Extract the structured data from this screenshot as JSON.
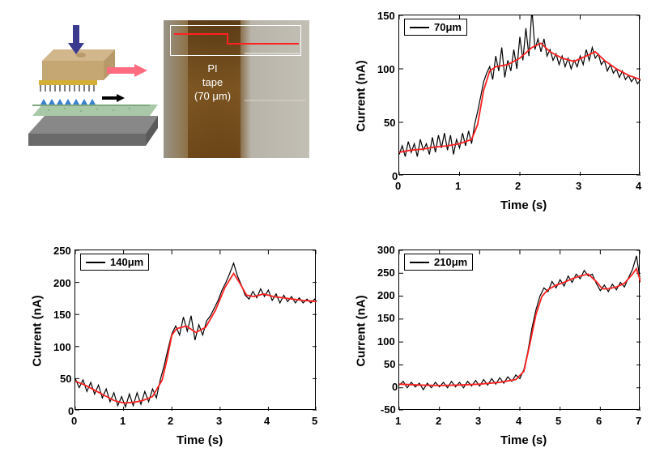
{
  "figure": {
    "background_color": "#ffffff",
    "panels": {
      "top_left": {
        "schematic": {
          "arrows": {
            "down": "#3a3a8f",
            "right": "#ff5b6f",
            "small_right": "#000000"
          },
          "block_top_color": "#d2b78c",
          "block_side_color": "#b89a6a",
          "substrate_top_color": "#767676",
          "substrate_green_color": "#a8c8a8"
        },
        "photo": {
          "label_l1": "PI",
          "label_l2": "tape",
          "label_l3": "(70 μm)",
          "tape_color": "#6b4417",
          "bg_gradient": [
            "#9a9488",
            "#c2bfb5"
          ],
          "step_line_color": "#ff2020",
          "step_border_color": "#ffffff"
        }
      },
      "chart_70": {
        "type": "line",
        "legend_label": "70μm",
        "xlabel": "Time (s)",
        "ylabel": "Current (nA)",
        "xlim": [
          0,
          4
        ],
        "ylim": [
          0,
          150
        ],
        "xticks": [
          0,
          1,
          2,
          3,
          4
        ],
        "yticks": [
          0,
          50,
          100,
          150
        ],
        "raw_color": "#000000",
        "smooth_color": "#ff2020",
        "label_fontsize": 15,
        "tick_fontsize": 13,
        "line_width_raw": 1.2,
        "line_width_smooth": 1.8,
        "raw_data": [
          [
            0.0,
            20
          ],
          [
            0.05,
            28
          ],
          [
            0.1,
            18
          ],
          [
            0.15,
            32
          ],
          [
            0.2,
            22
          ],
          [
            0.25,
            30
          ],
          [
            0.3,
            18
          ],
          [
            0.35,
            34
          ],
          [
            0.4,
            24
          ],
          [
            0.45,
            30
          ],
          [
            0.5,
            20
          ],
          [
            0.55,
            36
          ],
          [
            0.6,
            22
          ],
          [
            0.65,
            38
          ],
          [
            0.7,
            26
          ],
          [
            0.75,
            40
          ],
          [
            0.8,
            24
          ],
          [
            0.85,
            38
          ],
          [
            0.9,
            20
          ],
          [
            0.95,
            34
          ],
          [
            1.0,
            26
          ],
          [
            1.05,
            40
          ],
          [
            1.1,
            28
          ],
          [
            1.15,
            42
          ],
          [
            1.2,
            30
          ],
          [
            1.25,
            48
          ],
          [
            1.3,
            60
          ],
          [
            1.35,
            74
          ],
          [
            1.4,
            88
          ],
          [
            1.45,
            96
          ],
          [
            1.5,
            102
          ],
          [
            1.55,
            90
          ],
          [
            1.6,
            112
          ],
          [
            1.65,
            98
          ],
          [
            1.7,
            120
          ],
          [
            1.75,
            92
          ],
          [
            1.8,
            108
          ],
          [
            1.85,
            98
          ],
          [
            1.9,
            118
          ],
          [
            1.95,
            100
          ],
          [
            2.0,
            130
          ],
          [
            2.05,
            108
          ],
          [
            2.1,
            138
          ],
          [
            2.15,
            112
          ],
          [
            2.2,
            156
          ],
          [
            2.25,
            118
          ],
          [
            2.3,
            128
          ],
          [
            2.35,
            116
          ],
          [
            2.4,
            128
          ],
          [
            2.45,
            112
          ],
          [
            2.5,
            118
          ],
          [
            2.55,
            108
          ],
          [
            2.6,
            114
          ],
          [
            2.65,
            104
          ],
          [
            2.7,
            112
          ],
          [
            2.75,
            102
          ],
          [
            2.8,
            110
          ],
          [
            2.85,
            100
          ],
          [
            2.9,
            108
          ],
          [
            2.95,
            102
          ],
          [
            3.0,
            112
          ],
          [
            3.05,
            104
          ],
          [
            3.1,
            118
          ],
          [
            3.15,
            108
          ],
          [
            3.2,
            120
          ],
          [
            3.25,
            110
          ],
          [
            3.3,
            114
          ],
          [
            3.35,
            104
          ],
          [
            3.4,
            108
          ],
          [
            3.45,
            98
          ],
          [
            3.5,
            104
          ],
          [
            3.55,
            96
          ],
          [
            3.6,
            100
          ],
          [
            3.65,
            92
          ],
          [
            3.7,
            98
          ],
          [
            3.75,
            90
          ],
          [
            3.8,
            94
          ],
          [
            3.85,
            88
          ],
          [
            3.9,
            92
          ],
          [
            3.95,
            86
          ],
          [
            4.0,
            90
          ]
        ],
        "smooth_data": [
          [
            0.0,
            22
          ],
          [
            0.2,
            24
          ],
          [
            0.4,
            25
          ],
          [
            0.6,
            27
          ],
          [
            0.8,
            28
          ],
          [
            1.0,
            30
          ],
          [
            1.2,
            34
          ],
          [
            1.3,
            48
          ],
          [
            1.4,
            80
          ],
          [
            1.5,
            98
          ],
          [
            1.6,
            102
          ],
          [
            1.8,
            104
          ],
          [
            2.0,
            110
          ],
          [
            2.2,
            120
          ],
          [
            2.35,
            124
          ],
          [
            2.5,
            116
          ],
          [
            2.7,
            110
          ],
          [
            2.9,
            107
          ],
          [
            3.1,
            112
          ],
          [
            3.25,
            116
          ],
          [
            3.4,
            108
          ],
          [
            3.6,
            100
          ],
          [
            3.8,
            94
          ],
          [
            4.0,
            90
          ]
        ]
      },
      "chart_140": {
        "type": "line",
        "legend_label": "140μm",
        "xlabel": "Time (s)",
        "ylabel": "Current (nA)",
        "xlim": [
          0,
          5
        ],
        "ylim": [
          0,
          250
        ],
        "xticks": [
          0,
          1,
          2,
          3,
          4,
          5
        ],
        "yticks": [
          0,
          50,
          100,
          150,
          200,
          250
        ],
        "raw_color": "#000000",
        "smooth_color": "#ff2020",
        "raw_data": [
          [
            0.0,
            50
          ],
          [
            0.08,
            36
          ],
          [
            0.16,
            48
          ],
          [
            0.24,
            30
          ],
          [
            0.32,
            44
          ],
          [
            0.4,
            26
          ],
          [
            0.48,
            40
          ],
          [
            0.56,
            20
          ],
          [
            0.64,
            34
          ],
          [
            0.72,
            14
          ],
          [
            0.8,
            28
          ],
          [
            0.88,
            8
          ],
          [
            0.96,
            22
          ],
          [
            1.04,
            6
          ],
          [
            1.12,
            26
          ],
          [
            1.2,
            8
          ],
          [
            1.28,
            28
          ],
          [
            1.36,
            10
          ],
          [
            1.44,
            30
          ],
          [
            1.52,
            14
          ],
          [
            1.6,
            34
          ],
          [
            1.68,
            20
          ],
          [
            1.76,
            48
          ],
          [
            1.84,
            70
          ],
          [
            1.92,
            96
          ],
          [
            2.0,
            120
          ],
          [
            2.08,
            132
          ],
          [
            2.16,
            118
          ],
          [
            2.24,
            146
          ],
          [
            2.32,
            124
          ],
          [
            2.4,
            148
          ],
          [
            2.48,
            110
          ],
          [
            2.56,
            134
          ],
          [
            2.64,
            118
          ],
          [
            2.72,
            140
          ],
          [
            2.8,
            148
          ],
          [
            2.88,
            160
          ],
          [
            2.96,
            172
          ],
          [
            3.04,
            188
          ],
          [
            3.12,
            200
          ],
          [
            3.2,
            214
          ],
          [
            3.28,
            230
          ],
          [
            3.36,
            210
          ],
          [
            3.44,
            196
          ],
          [
            3.52,
            180
          ],
          [
            3.6,
            174
          ],
          [
            3.68,
            186
          ],
          [
            3.76,
            176
          ],
          [
            3.84,
            190
          ],
          [
            3.92,
            178
          ],
          [
            4.0,
            188
          ],
          [
            4.08,
            172
          ],
          [
            4.16,
            182
          ],
          [
            4.24,
            168
          ],
          [
            4.32,
            180
          ],
          [
            4.4,
            170
          ],
          [
            4.48,
            178
          ],
          [
            4.56,
            168
          ],
          [
            4.64,
            176
          ],
          [
            4.72,
            168
          ],
          [
            4.8,
            174
          ],
          [
            4.88,
            168
          ],
          [
            4.96,
            174
          ],
          [
            5.0,
            170
          ]
        ],
        "smooth_data": [
          [
            0.0,
            46
          ],
          [
            0.2,
            40
          ],
          [
            0.4,
            32
          ],
          [
            0.6,
            24
          ],
          [
            0.8,
            16
          ],
          [
            1.0,
            12
          ],
          [
            1.2,
            13
          ],
          [
            1.4,
            16
          ],
          [
            1.6,
            22
          ],
          [
            1.8,
            48
          ],
          [
            1.9,
            80
          ],
          [
            2.0,
            118
          ],
          [
            2.1,
            128
          ],
          [
            2.3,
            132
          ],
          [
            2.5,
            122
          ],
          [
            2.7,
            130
          ],
          [
            2.9,
            156
          ],
          [
            3.1,
            192
          ],
          [
            3.28,
            214
          ],
          [
            3.4,
            200
          ],
          [
            3.55,
            180
          ],
          [
            3.7,
            178
          ],
          [
            3.9,
            182
          ],
          [
            4.1,
            178
          ],
          [
            4.3,
            176
          ],
          [
            4.5,
            174
          ],
          [
            4.7,
            172
          ],
          [
            4.9,
            171
          ],
          [
            5.0,
            170
          ]
        ]
      },
      "chart_210": {
        "type": "line",
        "legend_label": "210μm",
        "xlabel": "Time (s)",
        "ylabel": "Current (nA)",
        "xlim": [
          1,
          7
        ],
        "ylim": [
          -50,
          300
        ],
        "xticks": [
          1,
          2,
          3,
          4,
          5,
          6,
          7
        ],
        "yticks": [
          -50,
          0,
          50,
          100,
          150,
          200,
          250,
          300
        ],
        "raw_color": "#000000",
        "smooth_color": "#ff2020",
        "raw_data": [
          [
            1.0,
            6
          ],
          [
            1.1,
            14
          ],
          [
            1.2,
            0
          ],
          [
            1.3,
            12
          ],
          [
            1.4,
            2
          ],
          [
            1.5,
            10
          ],
          [
            1.6,
            -4
          ],
          [
            1.7,
            10
          ],
          [
            1.8,
            0
          ],
          [
            1.9,
            12
          ],
          [
            2.0,
            2
          ],
          [
            2.1,
            12
          ],
          [
            2.2,
            0
          ],
          [
            2.3,
            14
          ],
          [
            2.4,
            2
          ],
          [
            2.5,
            12
          ],
          [
            2.6,
            0
          ],
          [
            2.7,
            14
          ],
          [
            2.8,
            4
          ],
          [
            2.9,
            16
          ],
          [
            3.0,
            4
          ],
          [
            3.1,
            18
          ],
          [
            3.2,
            6
          ],
          [
            3.3,
            20
          ],
          [
            3.4,
            8
          ],
          [
            3.5,
            22
          ],
          [
            3.6,
            10
          ],
          [
            3.7,
            24
          ],
          [
            3.8,
            14
          ],
          [
            3.9,
            28
          ],
          [
            4.0,
            20
          ],
          [
            4.1,
            40
          ],
          [
            4.2,
            80
          ],
          [
            4.3,
            130
          ],
          [
            4.4,
            170
          ],
          [
            4.5,
            200
          ],
          [
            4.6,
            218
          ],
          [
            4.7,
            210
          ],
          [
            4.8,
            232
          ],
          [
            4.9,
            218
          ],
          [
            5.0,
            236
          ],
          [
            5.1,
            222
          ],
          [
            5.2,
            244
          ],
          [
            5.3,
            230
          ],
          [
            5.4,
            248
          ],
          [
            5.5,
            238
          ],
          [
            5.6,
            256
          ],
          [
            5.7,
            244
          ],
          [
            5.8,
            248
          ],
          [
            5.9,
            228
          ],
          [
            6.0,
            212
          ],
          [
            6.1,
            224
          ],
          [
            6.2,
            210
          ],
          [
            6.3,
            226
          ],
          [
            6.4,
            214
          ],
          [
            6.5,
            230
          ],
          [
            6.6,
            220
          ],
          [
            6.7,
            240
          ],
          [
            6.8,
            258
          ],
          [
            6.9,
            288
          ],
          [
            7.0,
            230
          ]
        ],
        "smooth_data": [
          [
            1.0,
            8
          ],
          [
            1.5,
            6
          ],
          [
            2.0,
            5
          ],
          [
            2.5,
            6
          ],
          [
            3.0,
            8
          ],
          [
            3.5,
            12
          ],
          [
            3.9,
            18
          ],
          [
            4.1,
            36
          ],
          [
            4.25,
            96
          ],
          [
            4.4,
            160
          ],
          [
            4.55,
            200
          ],
          [
            4.7,
            214
          ],
          [
            4.9,
            224
          ],
          [
            5.1,
            230
          ],
          [
            5.3,
            238
          ],
          [
            5.5,
            244
          ],
          [
            5.7,
            248
          ],
          [
            5.9,
            232
          ],
          [
            6.05,
            216
          ],
          [
            6.2,
            216
          ],
          [
            6.4,
            220
          ],
          [
            6.6,
            228
          ],
          [
            6.8,
            248
          ],
          [
            6.9,
            260
          ],
          [
            7.0,
            232
          ]
        ]
      }
    }
  }
}
